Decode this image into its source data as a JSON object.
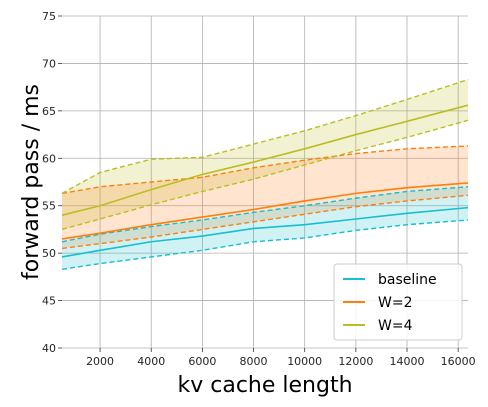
{
  "chart_data": {
    "type": "line",
    "xlabel": "kv cache length",
    "ylabel": "forward pass / ms",
    "xlim": [
      512,
      16384
    ],
    "ylim": [
      40,
      75
    ],
    "xticks": [
      2000,
      4000,
      6000,
      8000,
      10000,
      12000,
      14000,
      16000
    ],
    "yticks": [
      40,
      45,
      50,
      55,
      60,
      65,
      70,
      75
    ],
    "grid": true,
    "legend_position": "bottom-right",
    "series": [
      {
        "name": "baseline",
        "color": "#17becf",
        "x": [
          512,
          2000,
          4000,
          6000,
          8000,
          10000,
          12000,
          14000,
          16384
        ],
        "mean": [
          49.6,
          50.3,
          51.2,
          51.8,
          52.6,
          53.0,
          53.6,
          54.2,
          54.8
        ],
        "upper": [
          51.2,
          52.0,
          52.8,
          53.5,
          54.3,
          55.0,
          55.8,
          56.5,
          57.0
        ],
        "lower": [
          48.3,
          48.9,
          49.6,
          50.3,
          51.2,
          51.6,
          52.4,
          53.0,
          53.5
        ]
      },
      {
        "name": "W=2",
        "color": "#ff7f0e",
        "x": [
          512,
          2000,
          4000,
          6000,
          8000,
          10000,
          12000,
          14000,
          16384
        ],
        "mean": [
          51.5,
          52.1,
          53.0,
          53.8,
          54.6,
          55.5,
          56.3,
          56.9,
          57.4
        ],
        "upper": [
          56.3,
          57.0,
          57.5,
          58.0,
          59.0,
          59.8,
          60.5,
          61.0,
          61.3
        ],
        "lower": [
          50.5,
          51.0,
          51.7,
          52.5,
          53.3,
          54.1,
          54.9,
          55.5,
          56.1
        ]
      },
      {
        "name": "W=4",
        "color": "#bcbd22",
        "x": [
          512,
          2000,
          4000,
          6000,
          8000,
          10000,
          12000,
          14000,
          16384
        ],
        "mean": [
          54.0,
          55.0,
          56.7,
          58.3,
          59.6,
          61.0,
          62.5,
          63.9,
          65.6
        ],
        "upper": [
          56.3,
          58.5,
          59.9,
          60.1,
          61.5,
          62.9,
          64.5,
          66.2,
          68.3
        ],
        "lower": [
          52.5,
          53.6,
          55.1,
          56.5,
          57.8,
          59.3,
          60.8,
          62.2,
          64.0
        ]
      }
    ]
  }
}
